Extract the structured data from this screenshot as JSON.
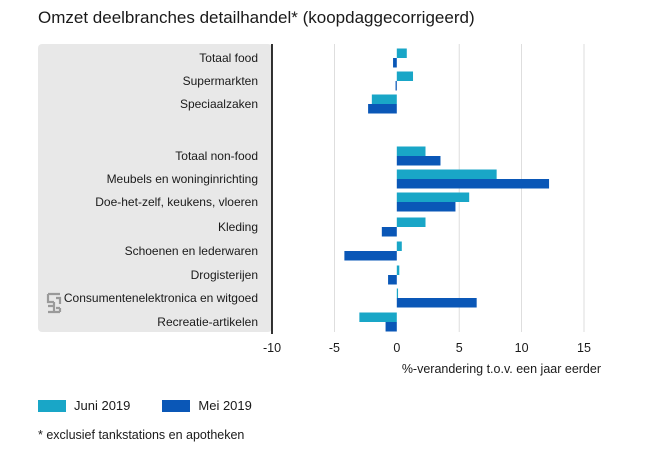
{
  "title": "Omzet deelbranches detailhandel* (koopdaggecorrigeerd)",
  "footnote": "* exclusief tankstations en apotheken",
  "colors": {
    "juni": "#19a6c7",
    "mei": "#0a57b7",
    "panel": "#e8e8e8",
    "axis": "#000000"
  },
  "icon": "cbs-logo",
  "chart_data": {
    "type": "bar",
    "orientation": "horizontal",
    "title": "Omzet deelbranches detailhandel* (koopdaggecorrigeerd)",
    "xlabel": "%-verandering t.o.v. een jaar eerder",
    "xlim": [
      -10,
      15
    ],
    "xticks": [
      "-10",
      "-5",
      "0",
      "5",
      "10",
      "15"
    ],
    "legend_position": "bottom-left",
    "categories": [
      "Totaal food",
      "Supermarkten",
      "Speciaalzaken",
      "Totaal non-food",
      "Meubels en woninginrichting",
      "Doe-het-zelf, keukens, vloeren",
      "Kleding",
      "Schoenen en lederwaren",
      "Drogisterijen",
      "Consumentenelektronica en witgoed",
      "Recreatie-artikelen"
    ],
    "series": [
      {
        "name": "Juni 2019",
        "values": [
          0.8,
          1.3,
          -2.0,
          2.3,
          8.0,
          5.8,
          2.3,
          0.4,
          0.2,
          0.1,
          -3.0
        ]
      },
      {
        "name": "Mei 2019",
        "values": [
          -0.3,
          -0.1,
          -2.3,
          3.5,
          12.2,
          4.7,
          -1.2,
          -4.2,
          -0.7,
          6.4,
          -0.9
        ]
      }
    ]
  }
}
